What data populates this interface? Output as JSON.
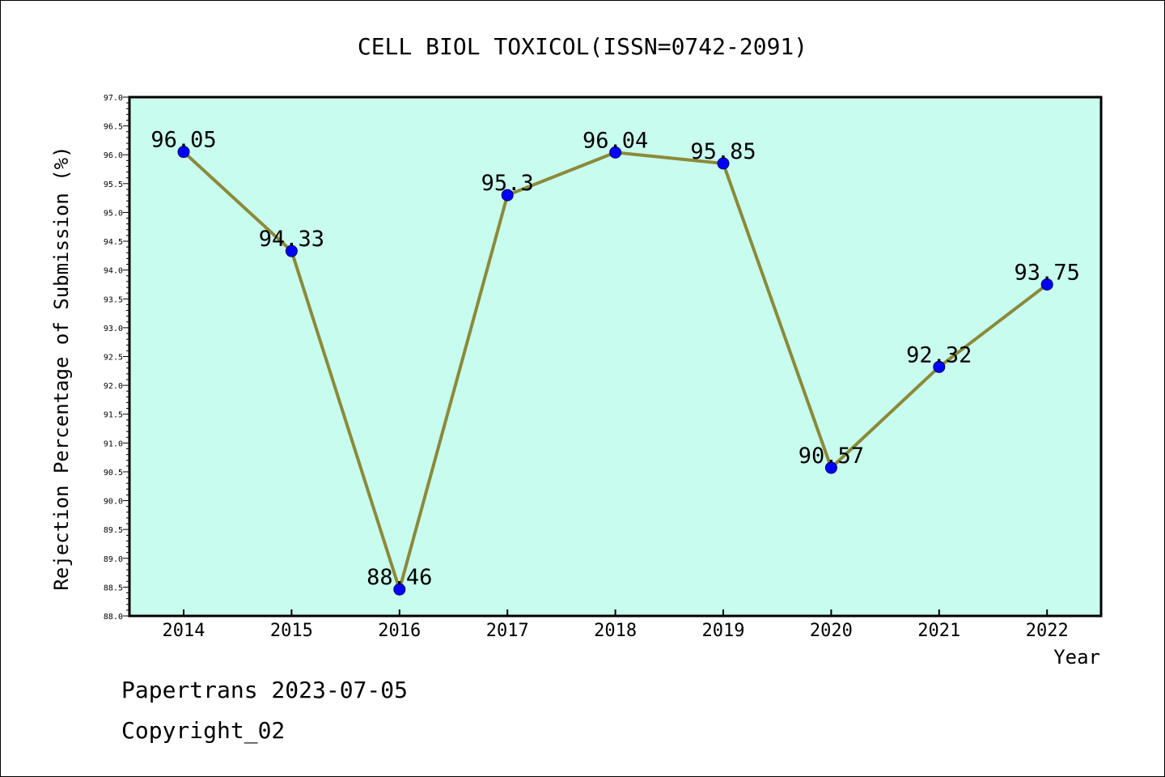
{
  "chart_data": {
    "type": "line",
    "title": "CELL BIOL TOXICOL(ISSN=0742-2091)",
    "xlabel": "Year",
    "ylabel": "Rejection Percentage of Submission (%)",
    "categories": [
      "2014",
      "2015",
      "2016",
      "2017",
      "2018",
      "2019",
      "2020",
      "2021",
      "2022"
    ],
    "series": [
      {
        "values": [
          96.05,
          94.33,
          88.46,
          95.3,
          96.04,
          95.85,
          90.57,
          92.32,
          93.75
        ],
        "labels": [
          "96.05",
          "94.33",
          "88.46",
          "95.3",
          "96.04",
          "95.85",
          "90.57",
          "92.32",
          "93.75"
        ]
      }
    ],
    "ylim": [
      88.0,
      97.0
    ],
    "yticks": [
      "88.0",
      "88.5",
      "89.0",
      "89.5",
      "90.0",
      "90.5",
      "91.0",
      "91.5",
      "92.0",
      "92.5",
      "93.0",
      "93.5",
      "94.0",
      "94.5",
      "95.0",
      "95.5",
      "96.0",
      "96.5",
      "97.0"
    ],
    "grid": false,
    "colors": {
      "plot_background": "#c8fcee",
      "line": "#8b8a3a",
      "marker": "#0000ff",
      "axis": "#000000"
    }
  },
  "footer": {
    "source": "Papertrans 2023-07-05",
    "copyright": "Copyright_02"
  }
}
